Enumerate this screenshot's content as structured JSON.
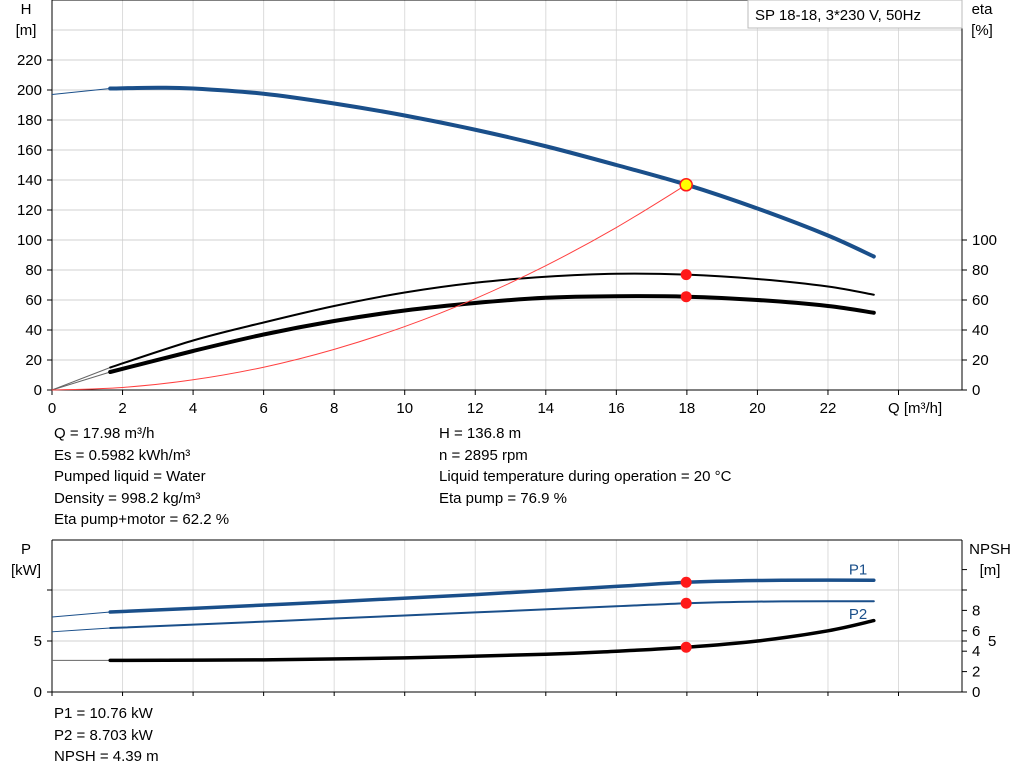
{
  "chart_data": [
    {
      "type": "line",
      "legend_title": "SP 18-18, 3*230 V, 50Hz",
      "xlabel": "Q [m³/h]",
      "ylabel_left": [
        "H",
        "[m]"
      ],
      "ylabel_right": [
        "eta",
        "[%]"
      ],
      "xlim": [
        0,
        25.8
      ],
      "ylim_left": [
        0,
        260
      ],
      "ylim_right": [
        0,
        260
      ],
      "x_ticks": [
        0,
        2,
        4,
        6,
        8,
        10,
        12,
        14,
        16,
        18,
        20,
        22
      ],
      "y_ticks_left": [
        0,
        20,
        40,
        60,
        80,
        100,
        120,
        140,
        160,
        180,
        200,
        220
      ],
      "y_ticks_right": [
        0,
        20,
        40,
        60,
        80,
        100
      ],
      "grid": true,
      "colors": {
        "head": "#1a4f8a",
        "eta": "#000000",
        "system": "#ff4040",
        "marker": "#ff1a1a",
        "duty_point_fill": "#ffff00"
      },
      "series": [
        {
          "key": "H",
          "axis": "left",
          "width": 4,
          "color": "#1a4f8a",
          "x": [
            1.65,
            3,
            4,
            6,
            8,
            10,
            12,
            14,
            16,
            18,
            20,
            22,
            23.3
          ],
          "y": [
            201,
            201.5,
            201,
            197.5,
            191,
            183,
            173.5,
            162.5,
            150,
            136.8,
            121,
            103,
            89
          ],
          "extension": {
            "x": [
              0,
              1.65
            ],
            "y": [
              197,
              201
            ]
          }
        },
        {
          "key": "eta_pump",
          "axis": "right",
          "width": 2,
          "color": "#000000",
          "x": [
            1.65,
            4,
            6,
            8,
            10,
            12,
            14,
            16,
            18,
            20,
            22,
            23.3
          ],
          "y": [
            15,
            33,
            45,
            56,
            65,
            71.5,
            75.5,
            77.5,
            76.9,
            74,
            69,
            63.5
          ],
          "extension": {
            "x": [
              0,
              1.65
            ],
            "y": [
              0,
              15
            ]
          }
        },
        {
          "key": "eta_pump_motor",
          "axis": "right",
          "width": 4,
          "color": "#000000",
          "x": [
            1.65,
            4,
            6,
            8,
            10,
            12,
            14,
            16,
            18,
            20,
            22,
            23.3
          ],
          "y": [
            12,
            26,
            37,
            46,
            53,
            58,
            61.5,
            62.5,
            62.2,
            60,
            56,
            51.5
          ],
          "extension": {
            "x": [
              0,
              1.65
            ],
            "y": [
              0,
              12
            ]
          }
        },
        {
          "key": "system",
          "axis": "left",
          "width": 1,
          "color": "#ff4040",
          "x": [
            0,
            2,
            4,
            6,
            8,
            10,
            12,
            14,
            16,
            17.98
          ],
          "y": [
            0,
            1.7,
            6.8,
            15.2,
            27.1,
            42.3,
            60.9,
            82.9,
            108.3,
            136.8
          ]
        }
      ],
      "markers": [
        {
          "key": "duty_point",
          "x": 17.98,
          "y": 136.8,
          "axis": "left"
        },
        {
          "key": "eta_pump_point",
          "x": 17.98,
          "y": 76.9,
          "axis": "right"
        },
        {
          "key": "eta_total_point",
          "x": 17.98,
          "y": 62.2,
          "axis": "right"
        }
      ]
    },
    {
      "type": "line",
      "ylabel_left": [
        "P",
        "[kW]"
      ],
      "ylabel_right": [
        "NPSH",
        "[m]"
      ],
      "xlim": [
        0,
        25.8
      ],
      "ylim_left": [
        0,
        14.9
      ],
      "ylim_right": [
        0,
        14.9
      ],
      "y_ticks_left": [
        0,
        5,
        10
      ],
      "y_tick_labels_left": [
        "0",
        "5",
        ""
      ],
      "y_ticks_right": [
        0,
        2,
        4,
        5,
        6,
        8,
        10,
        12
      ],
      "y_tick_labels_right": [
        "0",
        "2",
        "4",
        "5",
        "6",
        "8",
        "",
        ""
      ],
      "grid": true,
      "series": [
        {
          "key": "P1",
          "name": "P1",
          "axis": "left",
          "width": 3.5,
          "color": "#1a4f8a",
          "x": [
            1.65,
            4,
            8,
            12,
            16,
            18,
            20,
            22,
            23.3
          ],
          "y": [
            7.84,
            8.2,
            8.85,
            9.55,
            10.35,
            10.76,
            10.93,
            10.97,
            10.95
          ],
          "extension": {
            "x": [
              0,
              1.65
            ],
            "y": [
              7.35,
              7.84
            ]
          }
        },
        {
          "key": "P2",
          "name": "P2",
          "axis": "left",
          "width": 2,
          "color": "#1a4f8a",
          "x": [
            1.65,
            4,
            8,
            12,
            16,
            18,
            20,
            22,
            23.3
          ],
          "y": [
            6.27,
            6.6,
            7.2,
            7.8,
            8.4,
            8.703,
            8.86,
            8.9,
            8.9
          ],
          "extension": {
            "x": [
              0,
              1.65
            ],
            "y": [
              5.9,
              6.27
            ]
          }
        },
        {
          "key": "NPSH",
          "axis": "right",
          "width": 3.5,
          "color": "#000000",
          "x": [
            1.65,
            6,
            10,
            14,
            16,
            18,
            20,
            22,
            23.3
          ],
          "y": [
            3.1,
            3.15,
            3.35,
            3.7,
            4.0,
            4.39,
            5.0,
            6.0,
            7.0
          ],
          "extension": {
            "x": [
              0,
              1.65
            ],
            "y": [
              3.1,
              3.1
            ]
          }
        }
      ],
      "markers": [
        {
          "key": "P1_point",
          "x": 17.98,
          "y": 10.76,
          "axis": "left"
        },
        {
          "key": "P2_point",
          "x": 17.98,
          "y": 8.703,
          "axis": "left"
        },
        {
          "key": "NPSH_point",
          "x": 17.98,
          "y": 4.39,
          "axis": "right"
        }
      ]
    }
  ],
  "readout_top": {
    "left": [
      "Q = 17.98 m³/h",
      "Es = 0.5982 kWh/m³",
      "Pumped liquid = Water",
      "Density = 998.2 kg/m³",
      "Eta pump+motor = 62.2 %"
    ],
    "right": [
      "H = 136.8 m",
      "n = 2895 rpm",
      "Liquid temperature during operation = 20 °C",
      "Eta pump = 76.9 %"
    ]
  },
  "readout_bottom": [
    "P1 = 10.76 kW",
    "P2 = 8.703 kW",
    "NPSH = 4.39 m"
  ]
}
